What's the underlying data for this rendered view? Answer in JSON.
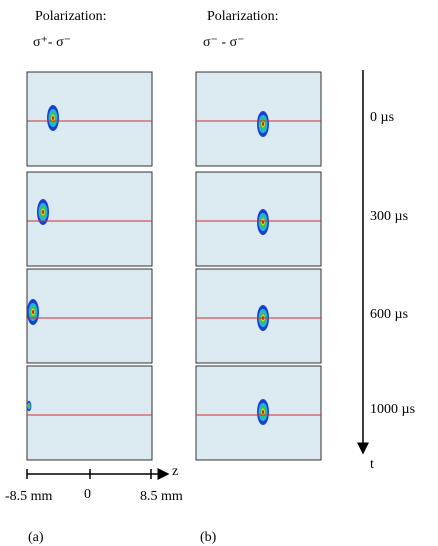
{
  "columns": [
    {
      "heading": "Polarization:",
      "polarization": "σ⁺- σ⁻",
      "label": "(a)"
    },
    {
      "heading": "Polarization:",
      "polarization": "σ⁻ - σ⁻",
      "label": "(b)"
    }
  ],
  "time_axis": {
    "label": "t",
    "times": [
      "0 µs",
      "300 µs",
      "600 µs",
      "1000 µs"
    ]
  },
  "z_axis": {
    "label": "z",
    "ticks": [
      "-8.5 mm",
      "0",
      "8.5 mm"
    ]
  }
}
